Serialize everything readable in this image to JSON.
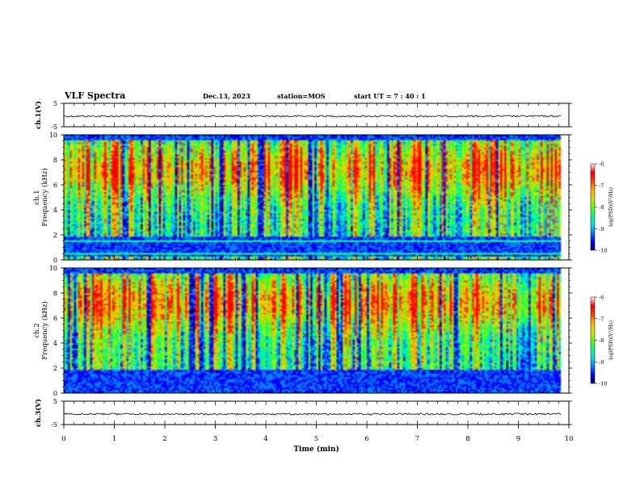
{
  "header": {
    "title": "VLF Spectra",
    "date": "Dec.13, 2023",
    "station": "station=MOS",
    "start": "start  UT =   7 : 40 : 1"
  },
  "colors": {
    "colormap": [
      "#00007f",
      "#0000ff",
      "#0080ff",
      "#00e0e0",
      "#00ff80",
      "#60ff00",
      "#d0e000",
      "#ffb000",
      "#ff4000",
      "#ff0000",
      "#ffffff"
    ]
  },
  "chart_data": [
    {
      "type": "line",
      "name": "ch1-waveform",
      "ylabel": "ch.1(V)",
      "ylim": [
        -5,
        5
      ],
      "yticks": [
        "5",
        "-5"
      ],
      "xlim": [
        0,
        10
      ],
      "baseline_value": -0.5
    },
    {
      "type": "heatmap",
      "name": "ch1-spectrogram",
      "ylabel": "ch.1\nFrequency (kHz)",
      "ylabel_lines": [
        "ch.1",
        "Frequency (kHz)"
      ],
      "ylim": [
        0,
        10
      ],
      "yticks": [
        "0",
        "2",
        "4",
        "6",
        "8",
        "10"
      ],
      "xlim": [
        0,
        10
      ],
      "data_end_min": 9.85,
      "band_noise_kHz": [
        0.3,
        1.9
      ],
      "colorbar": {
        "label": "log(PSD)(V²/Hz)",
        "range": [
          -10,
          -6
        ],
        "ticks": [
          "-6",
          "-7",
          "-8",
          "-9",
          "-10"
        ]
      }
    },
    {
      "type": "heatmap",
      "name": "ch2-spectrogram",
      "ylabel": "ch.2\nFrequency (kHz)",
      "ylabel_lines": [
        "ch.2",
        "Frequency (kHz)"
      ],
      "ylim": [
        0,
        10
      ],
      "yticks": [
        "0",
        "2",
        "4",
        "6",
        "8",
        "10"
      ],
      "xlim": [
        0,
        10
      ],
      "data_end_min": 9.85,
      "band_noise_kHz": [
        0.0,
        1.9
      ],
      "colorbar": {
        "label": "log(PSD)(V²/Hz)",
        "range": [
          -10,
          -6
        ],
        "ticks": [
          "-6",
          "-7",
          "-8",
          "-9",
          "-10"
        ]
      }
    },
    {
      "type": "line",
      "name": "ch3-waveform",
      "ylabel": "ch.3(V)",
      "ylim": [
        -5,
        5
      ],
      "yticks": [
        "5",
        "-5"
      ],
      "xlim": [
        0,
        10
      ],
      "baseline_value": -0.5
    }
  ],
  "xaxis": {
    "label": "Time  (min)",
    "ticks": [
      "0",
      "1",
      "2",
      "3",
      "4",
      "5",
      "6",
      "7",
      "8",
      "9",
      "10"
    ]
  }
}
